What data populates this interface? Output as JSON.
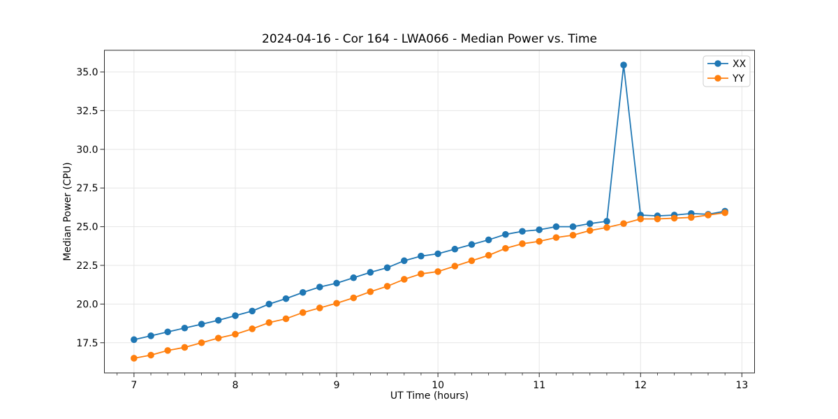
{
  "figure": {
    "title": "2024-04-16 - Cor 164 - LWA066 - Median Power vs. Time",
    "xlabel": "UT Time (hours)",
    "ylabel": "Median Power (CPU)"
  },
  "chart_data": {
    "type": "line",
    "title": "2024-04-16 - Cor 164 - LWA066 - Median Power vs. Time",
    "xlabel": "UT Time (hours)",
    "ylabel": "Median Power (CPU)",
    "xlim": [
      6.708,
      13.125
    ],
    "ylim": [
      15.55,
      36.4
    ],
    "x_major_ticks": [
      7,
      8,
      9,
      10,
      11,
      12,
      13
    ],
    "x_minor_tick_step": 0.166667,
    "y_major_ticks": [
      17.5,
      20.0,
      22.5,
      25.0,
      27.5,
      30.0,
      32.5,
      35.0
    ],
    "grid": true,
    "legend_position": "upper right",
    "background_color": "#ffffff",
    "spine_color": "#262626",
    "grid_color": "#e5e5e5",
    "legend_frame_color": "#cccccc",
    "x": [
      7.0,
      7.167,
      7.333,
      7.5,
      7.667,
      7.833,
      8.0,
      8.167,
      8.333,
      8.5,
      8.667,
      8.833,
      9.0,
      9.167,
      9.333,
      9.5,
      9.667,
      9.833,
      10.0,
      10.167,
      10.333,
      10.5,
      10.667,
      10.833,
      11.0,
      11.167,
      11.333,
      11.5,
      11.667,
      11.833,
      12.0,
      12.167,
      12.333,
      12.5,
      12.667,
      12.833
    ],
    "series": [
      {
        "name": "XX",
        "color": "#1f77b4",
        "values": [
          17.7,
          17.95,
          18.2,
          18.45,
          18.7,
          18.95,
          19.25,
          19.55,
          20.0,
          20.35,
          20.75,
          21.1,
          21.35,
          21.7,
          22.05,
          22.35,
          22.8,
          23.1,
          23.25,
          23.55,
          23.85,
          24.15,
          24.5,
          24.7,
          24.8,
          25.0,
          25.0,
          25.2,
          25.35,
          35.45,
          25.75,
          25.7,
          25.75,
          25.85,
          25.8,
          26.0
        ]
      },
      {
        "name": "YY",
        "color": "#ff7f0e",
        "values": [
          16.5,
          16.7,
          17.0,
          17.2,
          17.5,
          17.8,
          18.05,
          18.4,
          18.8,
          19.05,
          19.45,
          19.75,
          20.05,
          20.4,
          20.8,
          21.15,
          21.6,
          21.95,
          22.1,
          22.45,
          22.8,
          23.15,
          23.6,
          23.9,
          24.05,
          24.3,
          24.45,
          24.75,
          24.95,
          25.2,
          25.5,
          25.5,
          25.55,
          25.6,
          25.75,
          25.9
        ]
      }
    ]
  }
}
